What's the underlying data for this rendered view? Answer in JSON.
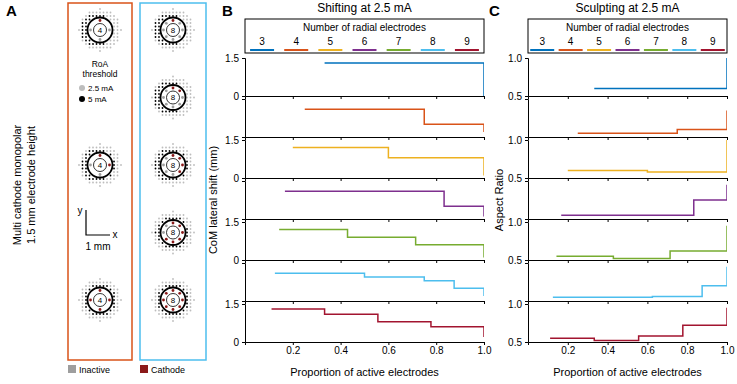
{
  "diagram": {
    "panel": "A",
    "y_label": [
      "Multi cathode monopolar",
      "1.5 mm electrode height"
    ],
    "roa_legend": {
      "title": [
        "RoA",
        "threshold"
      ],
      "items": [
        {
          "label": "2.5 mA",
          "color": "#bdbdbd"
        },
        {
          "label": "5 mA",
          "color": "#000000"
        }
      ]
    },
    "scale": {
      "y": "y",
      "x": "x",
      "label": "1 mm"
    },
    "legend": [
      {
        "label": "Inactive",
        "color": "#9e9e9e"
      },
      {
        "label": "Cathode",
        "color": "#8b1a1a"
      }
    ],
    "columns": [
      {
        "color": "#D95319",
        "electrodes": [
          {
            "label": "4",
            "cathodes": 1
          },
          {
            "label": "4",
            "cathodes": 2
          },
          {
            "label": "4",
            "cathodes": 4
          }
        ]
      },
      {
        "color": "#4DBEEE",
        "electrodes": [
          {
            "label": "8",
            "cathodes": 1
          },
          {
            "label": "8",
            "cathodes": 2
          },
          {
            "label": "8",
            "cathodes": 4
          },
          {
            "label": "8",
            "cathodes": 6
          },
          {
            "label": "8",
            "cathodes": 8
          }
        ]
      }
    ]
  },
  "chart_data": [
    {
      "type": "line",
      "line_style": "step",
      "panel": "B",
      "title": "Shifting at 2.5 mA",
      "y_label": "CoM lateral shift (mm)",
      "x_label": "Proportion of active electrodes",
      "legend_title": "Number of radial electrodes",
      "xlim": [
        0,
        1
      ],
      "xticks": [
        0.2,
        0.4,
        0.6,
        0.8,
        {
          "value": 1,
          "label": "1.0"
        }
      ],
      "ylim": [
        0,
        1.5
      ],
      "yticks": [
        0,
        1.5
      ],
      "series": [
        {
          "name": "3",
          "color": "#0072BD",
          "tick_labels": "y",
          "x": [
            0.333,
            0.667,
            1
          ],
          "values": [
            1.3,
            1.3,
            0
          ]
        },
        {
          "name": "4",
          "color": "#D95319",
          "tick_labels": false,
          "x": [
            0.25,
            0.5,
            0.75,
            1
          ],
          "values": [
            1.1,
            1.1,
            0.5,
            0.2
          ]
        },
        {
          "name": "5",
          "color": "#EDB120",
          "tick_labels": "y",
          "x": [
            0.2,
            0.4,
            0.6,
            0.8,
            1
          ],
          "values": [
            1.2,
            1.2,
            0.8,
            0.8,
            0.1
          ]
        },
        {
          "name": "6",
          "color": "#7E2F8E",
          "tick_labels": false,
          "x": [
            0.167,
            0.333,
            0.5,
            0.667,
            0.833,
            1
          ],
          "values": [
            1.1,
            1.1,
            1.1,
            1.1,
            0.5,
            0.1
          ]
        },
        {
          "name": "7",
          "color": "#77AC30",
          "tick_labels": "y",
          "x": [
            0.143,
            0.286,
            0.429,
            0.571,
            0.714,
            0.857,
            1
          ],
          "values": [
            1.2,
            1.2,
            0.9,
            0.9,
            0.6,
            0.6,
            0.1
          ]
        },
        {
          "name": "8",
          "color": "#4DBEEE",
          "tick_labels": false,
          "x": [
            0.125,
            0.25,
            0.375,
            0.5,
            0.625,
            0.75,
            0.875,
            1
          ],
          "values": [
            1.1,
            1.1,
            1.1,
            0.95,
            0.95,
            0.8,
            0.5,
            0.2
          ]
        },
        {
          "name": "9",
          "color": "#A2142F",
          "x": [
            0.111,
            0.222,
            0.333,
            0.444,
            0.556,
            0.667,
            0.778,
            0.889,
            1
          ],
          "values": [
            1.3,
            1.3,
            1.1,
            1.1,
            0.8,
            0.8,
            0.6,
            0.6,
            0.2
          ]
        }
      ]
    },
    {
      "type": "line",
      "line_style": "step",
      "panel": "C",
      "title": "Sculpting at 2.5 mA",
      "y_label": "Aspect Ratio",
      "x_label": "Proportion of active electrodes",
      "legend_title": "Number of radial electrodes",
      "xlim": [
        0,
        1
      ],
      "xticks": [
        0.2,
        0.4,
        0.6,
        0.8,
        {
          "value": 1,
          "label": "1.0"
        }
      ],
      "ylim": [
        0.5,
        1
      ],
      "yticks": [
        0.5,
        {
          "value": 1,
          "label": "1.0"
        }
      ],
      "series": [
        {
          "name": "3",
          "color": "#0072BD",
          "tick_labels": "y",
          "x": [
            0.333,
            0.667,
            1
          ],
          "values": [
            0.6,
            0.6,
            1
          ]
        },
        {
          "name": "4",
          "color": "#D95319",
          "tick_labels": false,
          "x": [
            0.25,
            0.5,
            0.75,
            1
          ],
          "values": [
            0.55,
            0.55,
            0.6,
            0.85
          ]
        },
        {
          "name": "5",
          "color": "#EDB120",
          "tick_labels": "y",
          "x": [
            0.2,
            0.4,
            0.6,
            0.8,
            1
          ],
          "values": [
            0.6,
            0.6,
            0.58,
            0.58,
            1
          ]
        },
        {
          "name": "6",
          "color": "#7E2F8E",
          "tick_labels": false,
          "x": [
            0.167,
            0.333,
            0.5,
            0.667,
            0.833,
            1
          ],
          "values": [
            0.55,
            0.55,
            0.55,
            0.55,
            0.75,
            0.95
          ]
        },
        {
          "name": "7",
          "color": "#77AC30",
          "tick_labels": "y",
          "x": [
            0.143,
            0.286,
            0.429,
            0.571,
            0.714,
            0.857,
            1
          ],
          "values": [
            0.55,
            0.55,
            0.52,
            0.52,
            0.62,
            0.62,
            0.95
          ]
        },
        {
          "name": "8",
          "color": "#4DBEEE",
          "tick_labels": false,
          "x": [
            0.125,
            0.25,
            0.375,
            0.5,
            0.625,
            0.75,
            0.875,
            1
          ],
          "values": [
            0.55,
            0.55,
            0.55,
            0.55,
            0.56,
            0.56,
            0.7,
            0.95
          ]
        },
        {
          "name": "9",
          "color": "#A2142F",
          "x": [
            0.111,
            0.222,
            0.333,
            0.444,
            0.556,
            0.667,
            0.778,
            0.889,
            1
          ],
          "values": [
            0.55,
            0.55,
            0.52,
            0.52,
            0.58,
            0.58,
            0.72,
            0.72,
            0.95
          ]
        }
      ]
    }
  ]
}
